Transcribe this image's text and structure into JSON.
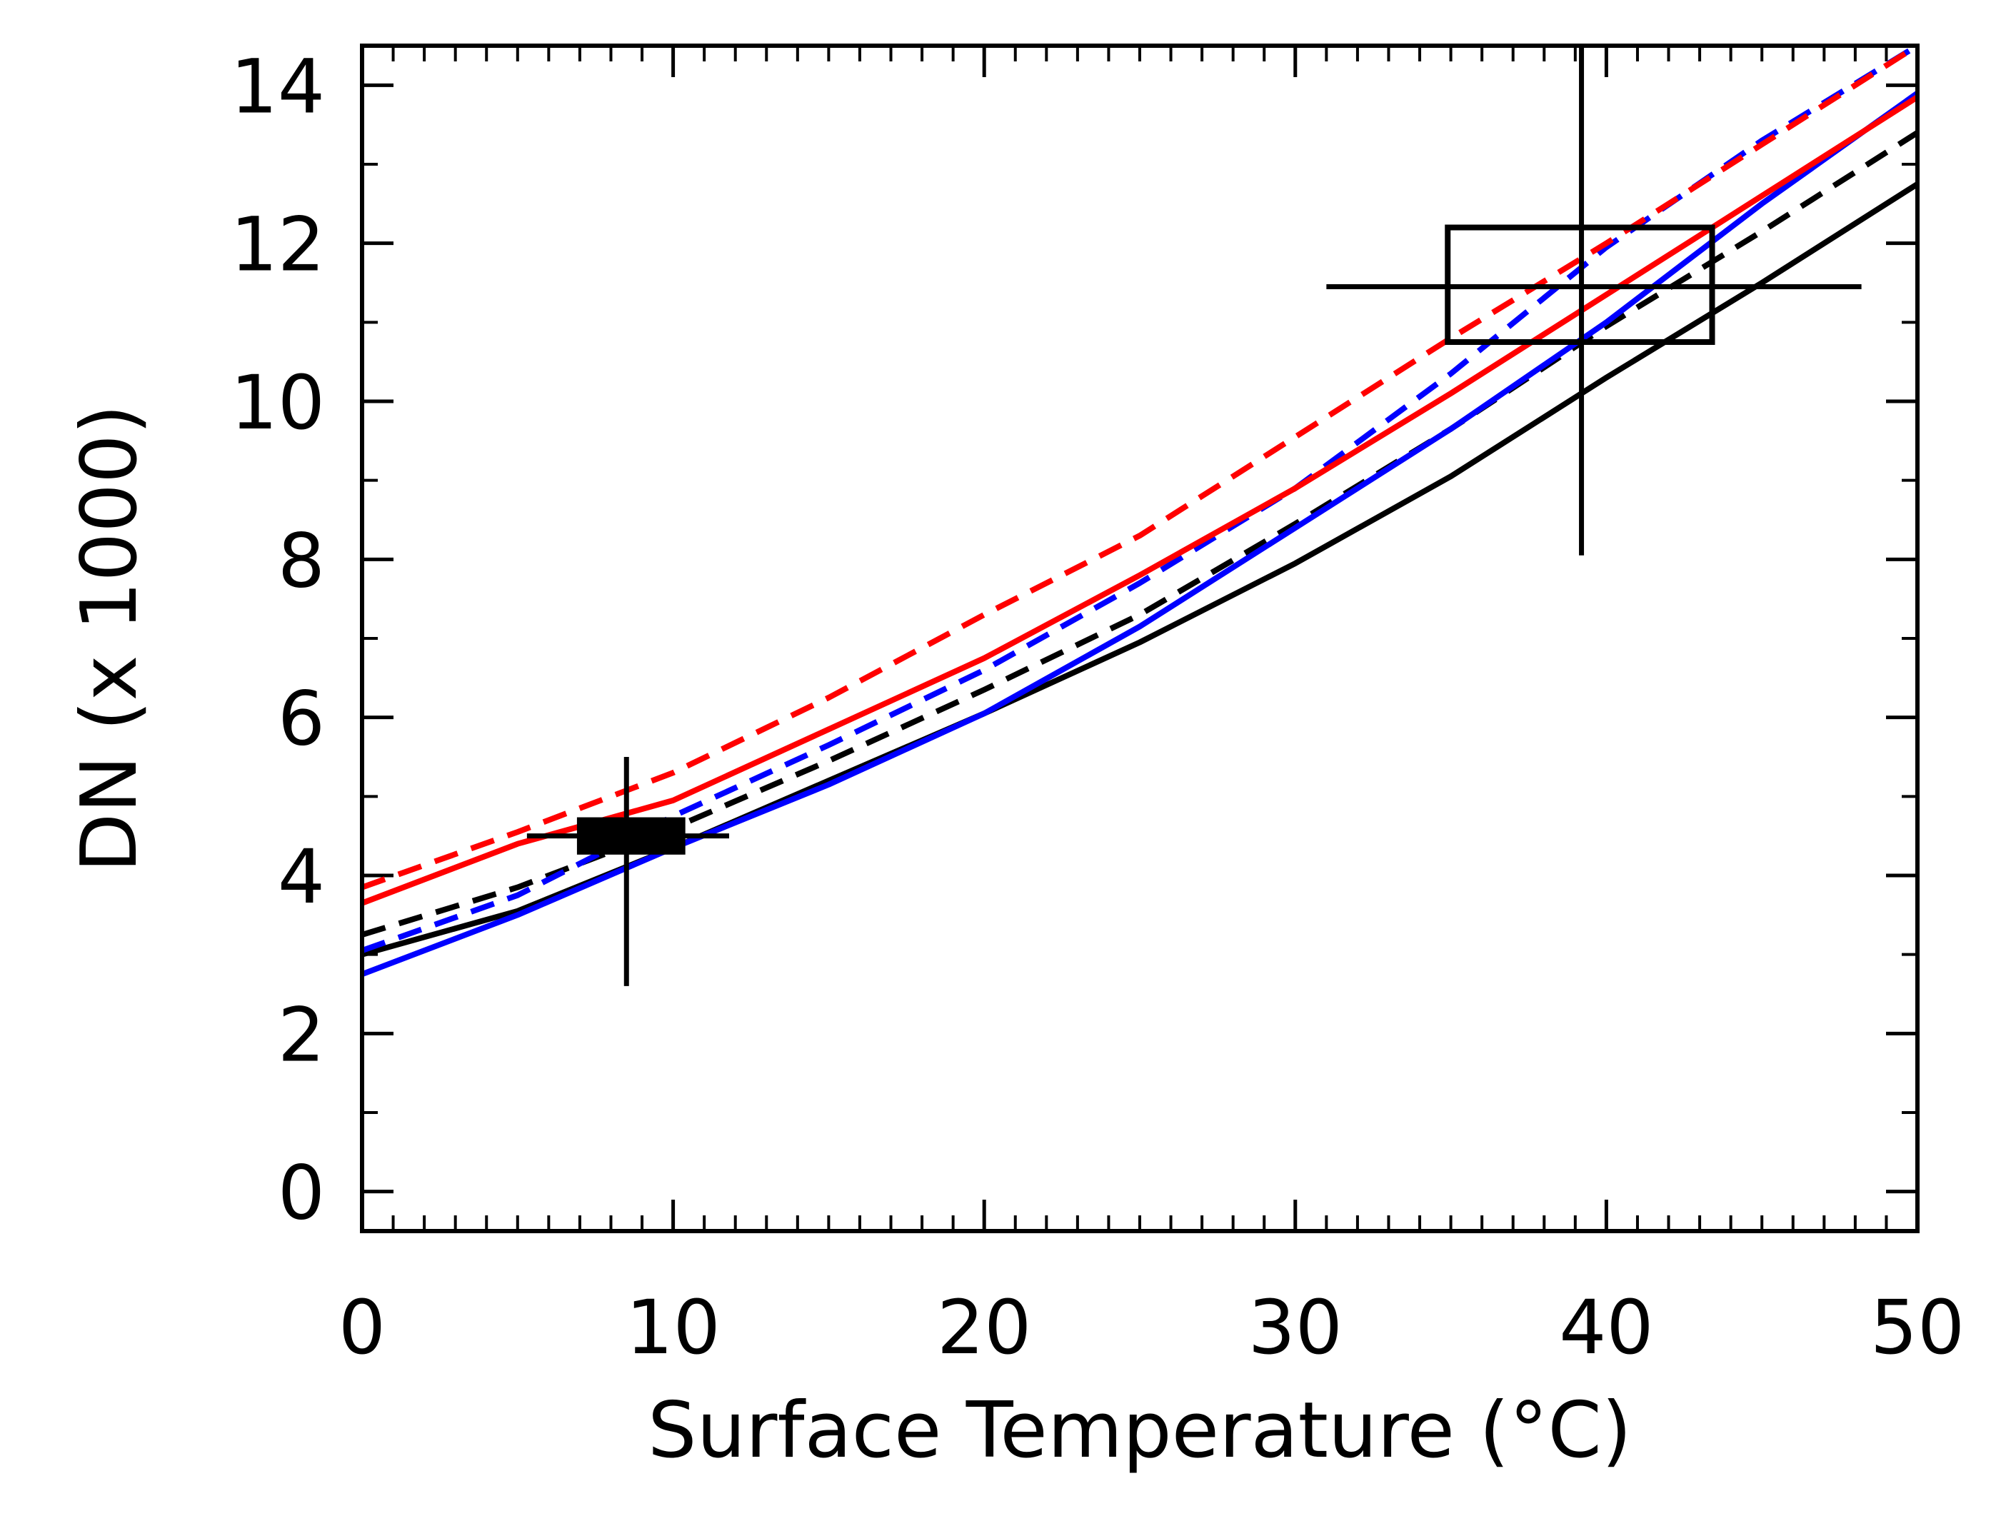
{
  "chart_data": {
    "type": "line",
    "title": "",
    "xlabel": "Surface Temperature (°C)",
    "ylabel": "DN (x 1000)",
    "xlim": [
      0,
      50
    ],
    "ylim": [
      -0.5,
      14.5
    ],
    "grid": false,
    "x_ticks": [
      0,
      10,
      20,
      30,
      40,
      50
    ],
    "x_tick_labels": [
      "0",
      "10",
      "20",
      "30",
      "40",
      "50"
    ],
    "y_ticks": [
      0,
      2,
      4,
      6,
      8,
      10,
      12,
      14
    ],
    "y_tick_labels": [
      "0",
      "2",
      "4",
      "6",
      "8",
      "10",
      "12",
      "14"
    ],
    "x_minor_step": 1,
    "y_minor_step": 1,
    "series": [
      {
        "name": "black solid",
        "color": "#000000",
        "dash": "solid",
        "x": [
          0,
          5,
          10,
          15,
          20,
          25,
          30,
          35,
          40,
          45,
          50
        ],
        "y": [
          3.0,
          3.55,
          4.35,
          5.2,
          6.05,
          6.95,
          7.95,
          9.05,
          10.3,
          11.5,
          12.75
        ]
      },
      {
        "name": "black dashed",
        "color": "#000000",
        "dash": "dashed",
        "x": [
          0,
          5,
          10,
          15,
          20,
          25,
          30,
          35,
          40,
          45,
          50
        ],
        "y": [
          3.25,
          3.85,
          4.6,
          5.45,
          6.35,
          7.3,
          8.45,
          9.65,
          10.95,
          12.15,
          13.4
        ]
      },
      {
        "name": "blue solid",
        "color": "#0000ff",
        "dash": "solid",
        "x": [
          0,
          5,
          10,
          15,
          20,
          25,
          30,
          35,
          40,
          45,
          50
        ],
        "y": [
          2.75,
          3.5,
          4.35,
          5.15,
          6.05,
          7.15,
          8.4,
          9.65,
          11.0,
          12.5,
          13.9
        ]
      },
      {
        "name": "blue dashed",
        "color": "#0000ff",
        "dash": "dashed",
        "x": [
          0,
          5,
          10,
          15,
          20,
          25,
          30,
          35,
          40,
          45,
          50
        ],
        "y": [
          3.05,
          3.75,
          4.75,
          5.65,
          6.6,
          7.7,
          8.9,
          10.35,
          11.95,
          13.3,
          14.5
        ]
      },
      {
        "name": "red solid",
        "color": "#ff0000",
        "dash": "solid",
        "x": [
          0,
          5,
          10,
          15,
          20,
          25,
          30,
          35,
          40,
          45,
          50
        ],
        "y": [
          3.65,
          4.4,
          4.95,
          5.85,
          6.75,
          7.8,
          8.9,
          10.1,
          11.35,
          12.6,
          13.85
        ]
      },
      {
        "name": "red dashed",
        "color": "#ff0000",
        "dash": "dashed",
        "x": [
          0,
          5,
          10,
          15,
          20,
          25,
          30,
          35,
          40,
          45,
          50
        ],
        "y": [
          3.85,
          4.55,
          5.3,
          6.25,
          7.3,
          8.3,
          9.55,
          10.8,
          12.0,
          13.25,
          14.5
        ]
      }
    ],
    "annotations": [
      {
        "type": "crosshair",
        "x": 8.5,
        "y": 4.5,
        "x_err": [
          5.3,
          11.8
        ],
        "y_err": [
          2.6,
          5.5
        ],
        "box_x": [
          7.0,
          10.3
        ],
        "box_y": [
          4.3,
          4.7
        ],
        "box_filled": true
      },
      {
        "type": "crosshair",
        "x": 39.2,
        "y": 11.45,
        "x_err": [
          31.0,
          48.2
        ],
        "y_err": [
          8.05,
          14.5
        ],
        "box_x": [
          34.9,
          43.4
        ],
        "box_y": [
          10.75,
          12.2
        ],
        "box_filled": false
      }
    ]
  }
}
